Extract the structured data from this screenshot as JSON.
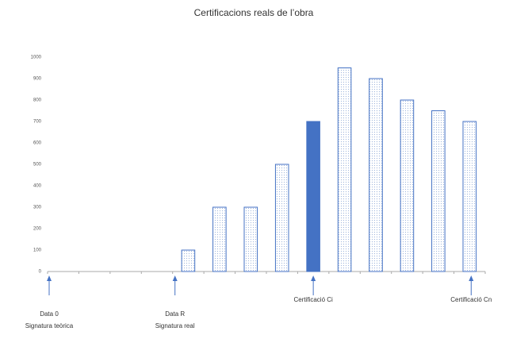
{
  "chart_data": {
    "type": "bar",
    "title": "Certificacions reals de l’obra",
    "categories": [
      null,
      null,
      null,
      null,
      null,
      null,
      null,
      null,
      null,
      null,
      null,
      null,
      null,
      null
    ],
    "values": [
      null,
      null,
      null,
      null,
      100,
      300,
      300,
      500,
      700,
      950,
      900,
      800,
      750,
      700
    ],
    "color": "#4472c4",
    "highlight": {
      "index": 8,
      "color": "#4472c4"
    },
    "ylim": [
      0,
      1000
    ],
    "yticks": [
      0,
      100,
      200,
      300,
      400,
      500,
      600,
      700,
      800,
      900,
      1000
    ],
    "grid": false,
    "annotations": [
      {
        "lines": [
          "Data 0",
          "Signatura teòrica"
        ]
      },
      {
        "lines": [
          "Data R",
          "Signatura real"
        ]
      },
      {
        "lines": [
          "Certificació Ci"
        ]
      },
      {
        "lines": [
          "Certificació Cn"
        ]
      }
    ]
  }
}
